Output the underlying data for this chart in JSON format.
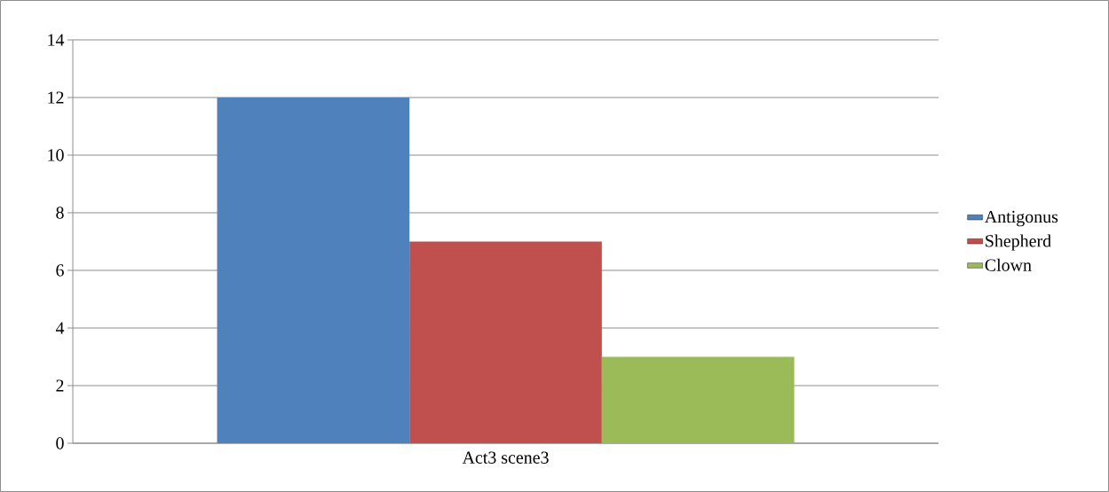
{
  "chart_data": {
    "type": "bar",
    "categories": [
      "Act3 scene3"
    ],
    "series": [
      {
        "name": "Antigonus",
        "color": "#4f81bd",
        "values": [
          12
        ]
      },
      {
        "name": "Shepherd",
        "color": "#c0504d",
        "values": [
          7
        ]
      },
      {
        "name": "Clown",
        "color": "#9bbb59",
        "values": [
          3
        ]
      }
    ],
    "ylim": [
      0,
      14
    ],
    "yticks": [
      0,
      2,
      4,
      6,
      8,
      10,
      12,
      14
    ],
    "grid": "y",
    "legend": "right"
  }
}
